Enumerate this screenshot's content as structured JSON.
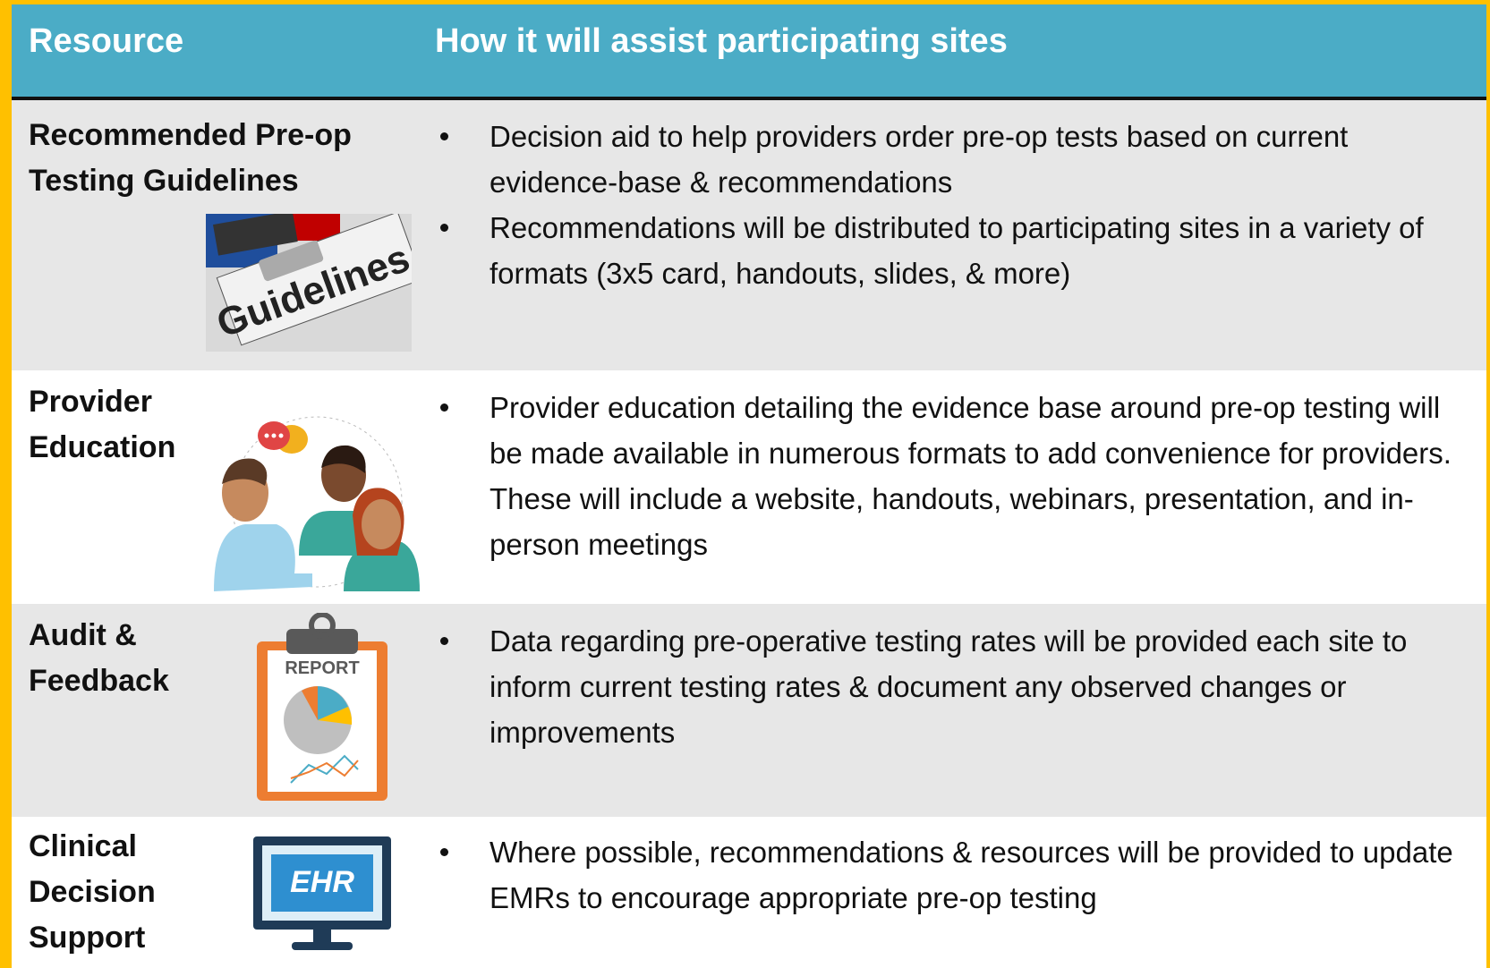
{
  "header": {
    "resource": "Resource",
    "assist": "How it will assist participating sites"
  },
  "rows": [
    {
      "resource": "Recommended Pre-op Testing Guidelines",
      "icon_text": "Guidelines",
      "bullets": [
        "Decision aid to help providers order pre-op tests based on current evidence-base & recommendations",
        "Recommendations will be distributed to participating sites in a variety of formats (3x5 card, handouts, slides, & more)"
      ]
    },
    {
      "resource": "Provider Education",
      "bullets": [
        "Provider education detailing the evidence base around pre-op testing will be made available in numerous formats to add convenience for providers. These will include a website, handouts, webinars, presentation, and in-person meetings"
      ]
    },
    {
      "resource": "Audit & Feedback",
      "icon_text": "REPORT",
      "bullets": [
        "Data regarding pre-operative testing rates will be provided each site to inform current testing rates & document any observed changes or improvements"
      ]
    },
    {
      "resource": "Clinical Decision Support",
      "icon_text": "EHR",
      "bullets": [
        "Where possible, recommendations & resources will be provided to update EMRs to encourage appropriate pre-op testing"
      ]
    }
  ]
}
